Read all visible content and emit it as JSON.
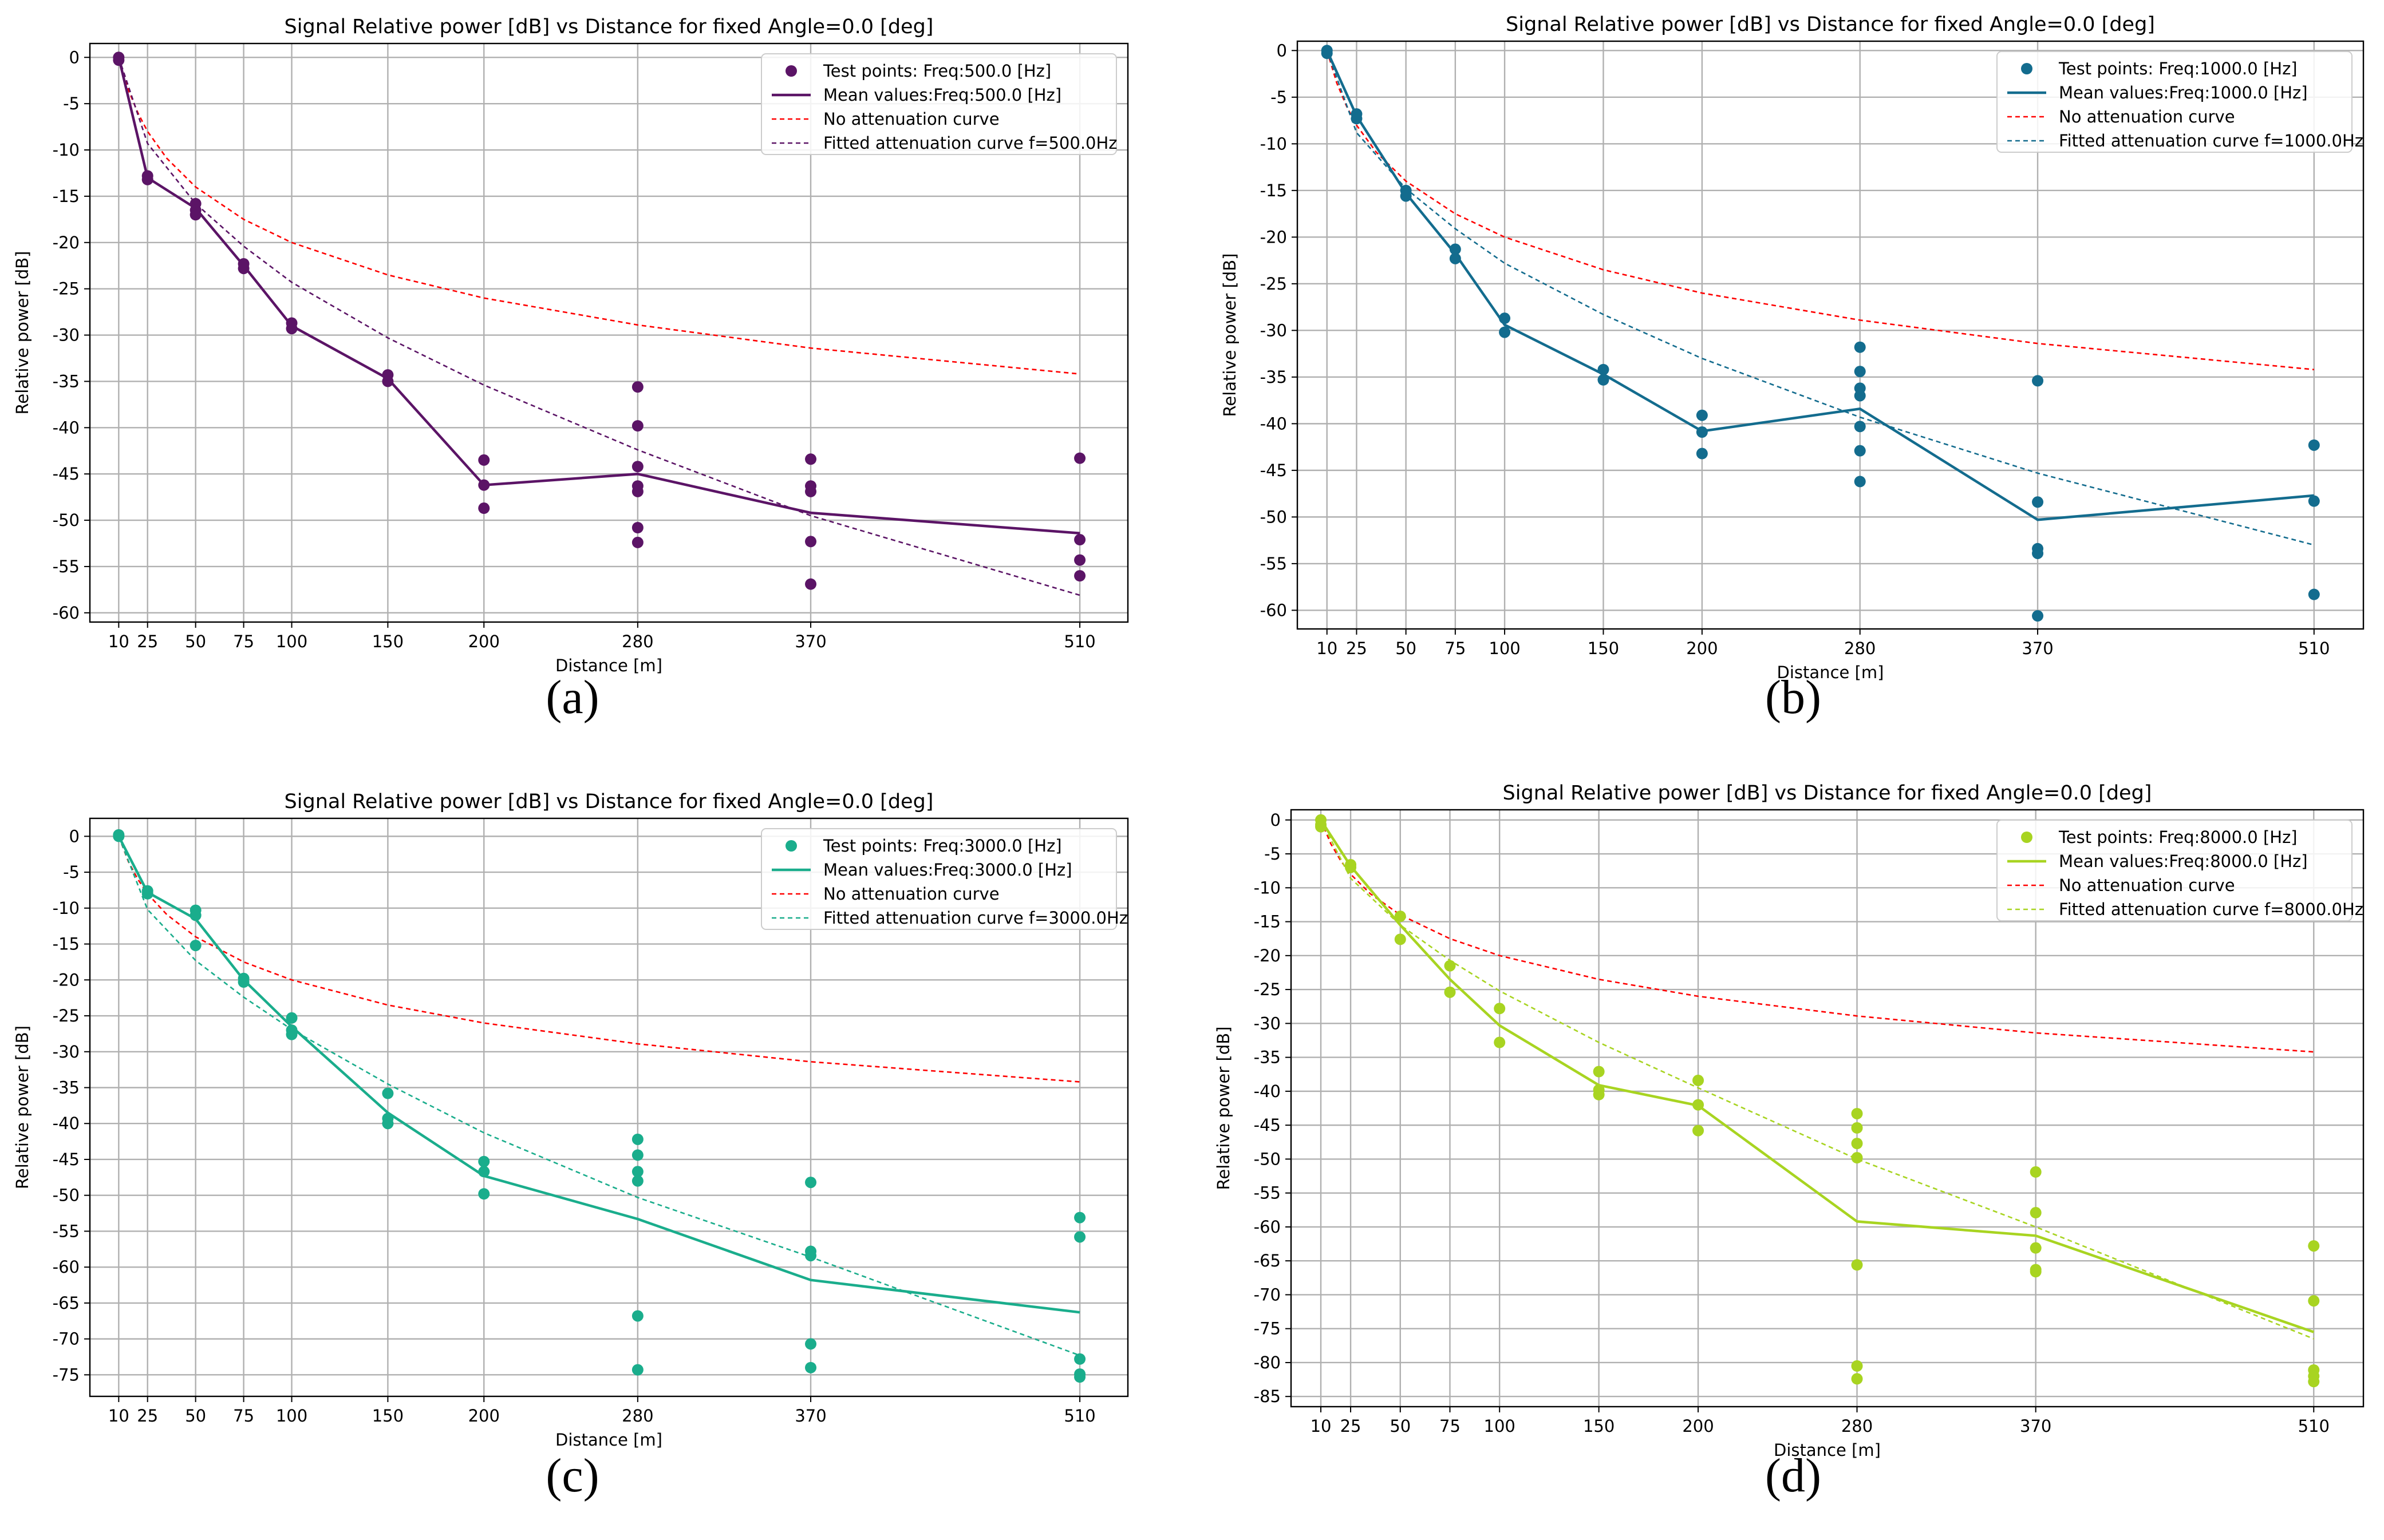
{
  "captions": [
    "(a)",
    "(b)",
    "(c)",
    "(d)"
  ],
  "chart_data": [
    {
      "type": "line",
      "title": "Signal Relative power [dB] vs Distance for fixed Angle=0.0 [deg]",
      "xlabel": "Distance [m]",
      "ylabel": "Relative power [dB]",
      "xticks": [
        10,
        25,
        50,
        75,
        100,
        150,
        200,
        280,
        370,
        510
      ],
      "xlim": [
        -5,
        535
      ],
      "ylim": [
        -61,
        1.5
      ],
      "yticks": [
        0,
        -5,
        -10,
        -15,
        -20,
        -25,
        -30,
        -35,
        -40,
        -45,
        -50,
        -55,
        -60
      ],
      "grid": true,
      "legend_position": "top-right",
      "color": "#5b1466",
      "series": [
        {
          "name": "Test points: Freq:500.0 [Hz]",
          "kind": "scatter",
          "points": [
            [
              10,
              0
            ],
            [
              10,
              -0.3
            ],
            [
              25,
              -12.8
            ],
            [
              25,
              -13.2
            ],
            [
              50,
              -15.8
            ],
            [
              50,
              -16.5
            ],
            [
              50,
              -17.0
            ],
            [
              75,
              -22.3
            ],
            [
              75,
              -22.8
            ],
            [
              100,
              -28.7
            ],
            [
              100,
              -29.3
            ],
            [
              150,
              -34.3
            ],
            [
              150,
              -35.0
            ],
            [
              200,
              -43.5
            ],
            [
              200,
              -46.2
            ],
            [
              200,
              -48.7
            ],
            [
              280,
              -35.6
            ],
            [
              280,
              -39.8
            ],
            [
              280,
              -44.2
            ],
            [
              280,
              -46.3
            ],
            [
              280,
              -46.9
            ],
            [
              280,
              -50.8
            ],
            [
              280,
              -52.4
            ],
            [
              370,
              -43.4
            ],
            [
              370,
              -46.3
            ],
            [
              370,
              -46.9
            ],
            [
              370,
              -52.3
            ],
            [
              370,
              -56.9
            ],
            [
              510,
              -43.3
            ],
            [
              510,
              -52.1
            ],
            [
              510,
              -54.3
            ],
            [
              510,
              -56.0
            ]
          ]
        },
        {
          "name": "Mean values:Freq:500.0 [Hz]",
          "kind": "line",
          "x": [
            10,
            25,
            50,
            75,
            100,
            150,
            200,
            280,
            370,
            510
          ],
          "y": [
            0,
            -13,
            -16.3,
            -22.5,
            -29,
            -34.7,
            -46.2,
            -45,
            -49.2,
            -51.4
          ]
        },
        {
          "name": "No attenuation curve",
          "kind": "dashed",
          "color": "#ff0000",
          "x": [
            10,
            15,
            20,
            25,
            35,
            50,
            75,
            100,
            150,
            200,
            280,
            370,
            510
          ],
          "y": [
            0,
            -3.5,
            -6.0,
            -8.0,
            -10.9,
            -14.0,
            -17.5,
            -20.0,
            -23.5,
            -26.0,
            -28.9,
            -31.4,
            -34.2
          ]
        },
        {
          "name": "Fitted attenuation curve f=500.0Hz",
          "kind": "dashed",
          "x": [
            10,
            25,
            50,
            75,
            100,
            150,
            200,
            280,
            370,
            510
          ],
          "y": [
            0,
            -9.3,
            -15.8,
            -20.4,
            -24.3,
            -30.3,
            -35.4,
            -42.4,
            -49.5,
            -58.1
          ]
        }
      ]
    },
    {
      "type": "line",
      "title": "Signal Relative power [dB] vs Distance for fixed Angle=0.0 [deg]",
      "xlabel": "Distance [m]",
      "ylabel": "Relative power [dB]",
      "xticks": [
        10,
        25,
        50,
        75,
        100,
        150,
        200,
        280,
        370,
        510
      ],
      "xlim": [
        -5,
        535
      ],
      "ylim": [
        -62,
        1
      ],
      "yticks": [
        0,
        -5,
        -10,
        -15,
        -20,
        -25,
        -30,
        -35,
        -40,
        -45,
        -50,
        -55,
        -60
      ],
      "grid": true,
      "legend_position": "top-right",
      "color": "#136c8e",
      "series": [
        {
          "name": "Test points: Freq:1000.0 [Hz]",
          "kind": "scatter",
          "points": [
            [
              10,
              0
            ],
            [
              10,
              -0.3
            ],
            [
              25,
              -6.8
            ],
            [
              25,
              -7.3
            ],
            [
              50,
              -15.0
            ],
            [
              50,
              -15.6
            ],
            [
              75,
              -21.3
            ],
            [
              75,
              -22.3
            ],
            [
              100,
              -28.7
            ],
            [
              100,
              -30.2
            ],
            [
              150,
              -34.2
            ],
            [
              150,
              -35.3
            ],
            [
              200,
              -39.1
            ],
            [
              200,
              -40.9
            ],
            [
              200,
              -43.2
            ],
            [
              280,
              -31.8
            ],
            [
              280,
              -34.4
            ],
            [
              280,
              -36.2
            ],
            [
              280,
              -37.0
            ],
            [
              280,
              -40.3
            ],
            [
              280,
              -42.9
            ],
            [
              280,
              -46.2
            ],
            [
              370,
              -35.4
            ],
            [
              370,
              -48.4
            ],
            [
              370,
              -53.4
            ],
            [
              370,
              -53.9
            ],
            [
              370,
              -60.6
            ],
            [
              510,
              -42.3
            ],
            [
              510,
              -48.3
            ],
            [
              510,
              -58.3
            ]
          ]
        },
        {
          "name": "Mean values:Freq:1000.0 [Hz]",
          "kind": "line",
          "x": [
            10,
            25,
            50,
            75,
            100,
            150,
            200,
            280,
            370,
            510
          ],
          "y": [
            0,
            -7,
            -15.3,
            -21.8,
            -29.4,
            -34.7,
            -40.8,
            -38.4,
            -50.3,
            -47.7
          ]
        },
        {
          "name": "No attenuation curve",
          "kind": "dashed",
          "color": "#ff0000",
          "x": [
            10,
            15,
            20,
            25,
            35,
            50,
            75,
            100,
            150,
            200,
            280,
            370,
            510
          ],
          "y": [
            0,
            -3.5,
            -6.0,
            -8.0,
            -10.9,
            -14.0,
            -17.5,
            -20.0,
            -23.5,
            -26.0,
            -28.9,
            -31.4,
            -34.2
          ]
        },
        {
          "name": "Fitted attenuation curve f=1000.0Hz",
          "kind": "dashed",
          "x": [
            10,
            25,
            50,
            75,
            100,
            150,
            200,
            280,
            370,
            510
          ],
          "y": [
            0,
            -8.8,
            -14.8,
            -19.1,
            -22.8,
            -28.3,
            -33.0,
            -39.3,
            -45.3,
            -53.0
          ]
        }
      ]
    },
    {
      "type": "line",
      "title": "Signal Relative power [dB] vs Distance for fixed Angle=0.0 [deg]",
      "xlabel": "Distance [m]",
      "ylabel": "Relative power [dB]",
      "xticks": [
        10,
        25,
        50,
        75,
        100,
        150,
        200,
        280,
        370,
        510
      ],
      "xlim": [
        -5,
        535
      ],
      "ylim": [
        -78,
        2.5
      ],
      "yticks": [
        0,
        -5,
        -10,
        -15,
        -20,
        -25,
        -30,
        -35,
        -40,
        -45,
        -50,
        -55,
        -60,
        -65,
        -70,
        -75
      ],
      "grid": true,
      "legend_position": "top-right",
      "color": "#1aad8c",
      "series": [
        {
          "name": "Test points: Freq:3000.0 [Hz]",
          "kind": "scatter",
          "points": [
            [
              10,
              0
            ],
            [
              10,
              0.2
            ],
            [
              25,
              -7.6
            ],
            [
              25,
              -8.0
            ],
            [
              50,
              -10.3
            ],
            [
              50,
              -11.0
            ],
            [
              50,
              -15.2
            ],
            [
              75,
              -19.8
            ],
            [
              75,
              -20.3
            ],
            [
              100,
              -25.3
            ],
            [
              100,
              -27.0
            ],
            [
              100,
              -27.6
            ],
            [
              150,
              -35.8
            ],
            [
              150,
              -39.3
            ],
            [
              150,
              -40.0
            ],
            [
              200,
              -45.3
            ],
            [
              200,
              -46.7
            ],
            [
              200,
              -49.8
            ],
            [
              280,
              -42.2
            ],
            [
              280,
              -44.4
            ],
            [
              280,
              -46.7
            ],
            [
              280,
              -48.0
            ],
            [
              280,
              -66.8
            ],
            [
              280,
              -74.3
            ],
            [
              370,
              -48.2
            ],
            [
              370,
              -57.8
            ],
            [
              370,
              -58.4
            ],
            [
              370,
              -70.7
            ],
            [
              370,
              -74.0
            ],
            [
              510,
              -53.1
            ],
            [
              510,
              -55.8
            ],
            [
              510,
              -72.8
            ],
            [
              510,
              -74.9
            ],
            [
              510,
              -75.3
            ]
          ]
        },
        {
          "name": "Mean values:Freq:3000.0 [Hz]",
          "kind": "line",
          "x": [
            10,
            25,
            50,
            75,
            100,
            150,
            200,
            280,
            370,
            510
          ],
          "y": [
            0,
            -7.8,
            -11.5,
            -20,
            -26.5,
            -38.5,
            -47.3,
            -53.3,
            -61.8,
            -66.3
          ]
        },
        {
          "name": "No attenuation curve",
          "kind": "dashed",
          "color": "#ff0000",
          "x": [
            10,
            15,
            20,
            25,
            35,
            50,
            75,
            100,
            150,
            200,
            280,
            370,
            510
          ],
          "y": [
            0,
            -3.5,
            -6.0,
            -8.0,
            -10.9,
            -14.0,
            -17.5,
            -20.0,
            -23.5,
            -26.0,
            -28.9,
            -31.4,
            -34.2
          ]
        },
        {
          "name": "Fitted attenuation curve f=3000.0Hz",
          "kind": "dashed",
          "x": [
            10,
            25,
            50,
            75,
            100,
            150,
            200,
            280,
            370,
            510
          ],
          "y": [
            0,
            -10.2,
            -17.3,
            -22.4,
            -26.9,
            -34.5,
            -41.3,
            -50.3,
            -58.6,
            -72.3
          ]
        }
      ]
    },
    {
      "type": "line",
      "title": "Signal Relative power [dB] vs Distance for fixed Angle=0.0 [deg]",
      "xlabel": "Distance [m]",
      "ylabel": "Relative power [dB]",
      "xticks": [
        10,
        25,
        50,
        75,
        100,
        150,
        200,
        280,
        370,
        510
      ],
      "xlim": [
        -5,
        535
      ],
      "ylim": [
        -86.5,
        1.5
      ],
      "yticks": [
        0,
        -5,
        -10,
        -15,
        -20,
        -25,
        -30,
        -35,
        -40,
        -45,
        -50,
        -55,
        -60,
        -65,
        -70,
        -75,
        -80,
        -85
      ],
      "grid": true,
      "legend_position": "top-right",
      "color": "#a8d421",
      "series": [
        {
          "name": "Test points: Freq:8000.0 [Hz]",
          "kind": "scatter",
          "points": [
            [
              10,
              0
            ],
            [
              10,
              -0.7
            ],
            [
              10,
              -1.0
            ],
            [
              25,
              -6.6
            ],
            [
              25,
              -7.0
            ],
            [
              50,
              -14.2
            ],
            [
              50,
              -17.6
            ],
            [
              75,
              -21.5
            ],
            [
              75,
              -25.4
            ],
            [
              100,
              -27.8
            ],
            [
              100,
              -32.8
            ],
            [
              150,
              -37.1
            ],
            [
              150,
              -39.8
            ],
            [
              150,
              -40.5
            ],
            [
              200,
              -38.4
            ],
            [
              200,
              -42.0
            ],
            [
              200,
              -45.8
            ],
            [
              280,
              -43.3
            ],
            [
              280,
              -45.4
            ],
            [
              280,
              -47.7
            ],
            [
              280,
              -49.8
            ],
            [
              280,
              -65.6
            ],
            [
              280,
              -80.5
            ],
            [
              280,
              -82.4
            ],
            [
              370,
              -51.9
            ],
            [
              370,
              -57.9
            ],
            [
              370,
              -63.1
            ],
            [
              370,
              -66.3
            ],
            [
              370,
              -66.6
            ],
            [
              510,
              -62.8
            ],
            [
              510,
              -70.9
            ],
            [
              510,
              -81.1
            ],
            [
              510,
              -82.0
            ],
            [
              510,
              -82.8
            ]
          ]
        },
        {
          "name": "Mean values:Freq:8000.0 [Hz]",
          "kind": "line",
          "x": [
            10,
            25,
            50,
            75,
            100,
            150,
            200,
            280,
            370,
            510
          ],
          "y": [
            0,
            -6.8,
            -15.5,
            -23.5,
            -30.3,
            -39.1,
            -42.1,
            -59.2,
            -61.3,
            -75.5
          ]
        },
        {
          "name": "No attenuation curve",
          "kind": "dashed",
          "color": "#ff0000",
          "x": [
            10,
            15,
            20,
            25,
            35,
            50,
            75,
            100,
            150,
            200,
            280,
            370,
            510
          ],
          "y": [
            0,
            -3.5,
            -6.0,
            -8.0,
            -10.9,
            -14.0,
            -17.5,
            -20.0,
            -23.5,
            -26.0,
            -28.9,
            -31.4,
            -34.2
          ]
        },
        {
          "name": "Fitted attenuation curve f=8000.0Hz",
          "kind": "dashed",
          "x": [
            10,
            25,
            50,
            75,
            100,
            150,
            200,
            280,
            370,
            510
          ],
          "y": [
            0,
            -8.6,
            -15.5,
            -20.7,
            -25.2,
            -32.8,
            -39.5,
            -50.0,
            -60.0,
            -76.5
          ]
        }
      ]
    }
  ]
}
